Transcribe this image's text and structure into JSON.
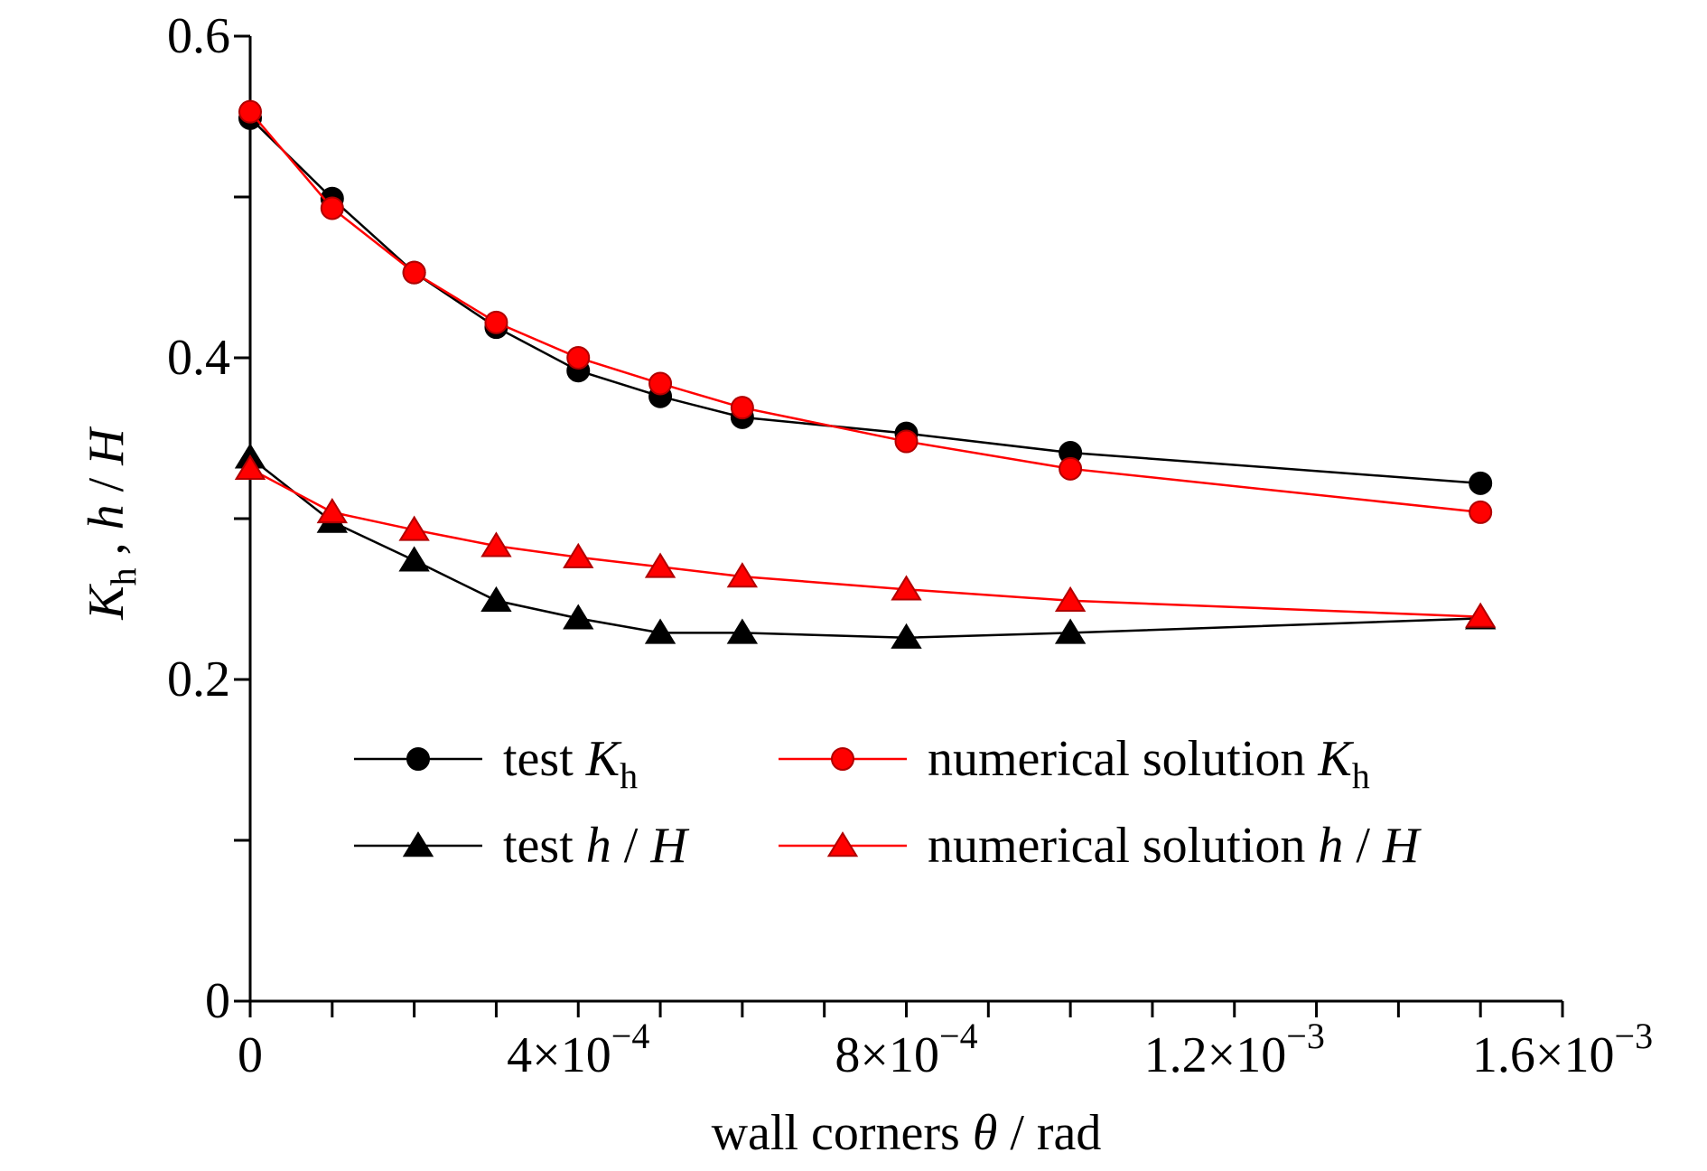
{
  "chart_data": {
    "type": "line",
    "xlabel": {
      "prefix": "wall corners ",
      "symbol": "θ",
      "suffix": " / rad"
    },
    "ylabel": {
      "parts": [
        {
          "text": "K",
          "italic": true
        },
        {
          "text": "h",
          "sub": true
        },
        {
          "text": " , ",
          "italic": false
        },
        {
          "text": "h",
          "italic": true
        },
        {
          "text": " / ",
          "italic": false
        },
        {
          "text": "H",
          "italic": true
        }
      ]
    },
    "xlim": [
      0,
      0.0016
    ],
    "ylim": [
      0,
      0.6
    ],
    "x_ticks": [
      {
        "value": 0,
        "mantissa": "0",
        "exponent": ""
      },
      {
        "value": 0.0004,
        "mantissa": "4×10",
        "exponent": "−4"
      },
      {
        "value": 0.0008,
        "mantissa": "8×10",
        "exponent": "−4"
      },
      {
        "value": 0.0012,
        "mantissa": "1.2×10",
        "exponent": "−3"
      },
      {
        "value": 0.0016,
        "mantissa": "1.6×10",
        "exponent": "−3"
      }
    ],
    "y_ticks": [
      {
        "value": 0,
        "label": "0"
      },
      {
        "value": 0.2,
        "label": "0.2"
      },
      {
        "value": 0.4,
        "label": "0.4"
      },
      {
        "value": 0.6,
        "label": "0.6"
      }
    ],
    "x": [
      0,
      0.0001,
      0.0002,
      0.0003,
      0.0004,
      0.0005,
      0.0006,
      0.0008,
      0.001,
      0.0015
    ],
    "series": [
      {
        "key": "test_kh",
        "label": "test",
        "var": "Kh",
        "color": "#000000",
        "marker": "circle",
        "values": [
          0.549,
          0.499,
          0.453,
          0.419,
          0.392,
          0.376,
          0.363,
          0.353,
          0.341,
          0.322
        ]
      },
      {
        "key": "num_kh",
        "label": "numerical solution",
        "var": "Kh",
        "color": "#ff0000",
        "marker": "circle",
        "values": [
          0.553,
          0.493,
          0.453,
          0.422,
          0.4,
          0.384,
          0.369,
          0.348,
          0.331,
          0.304
        ]
      },
      {
        "key": "test_hH",
        "label": "test",
        "var": "h/H",
        "color": "#000000",
        "marker": "triangle",
        "values": [
          0.338,
          0.298,
          0.274,
          0.249,
          0.238,
          0.229,
          0.229,
          0.226,
          0.229,
          0.238
        ]
      },
      {
        "key": "num_hH",
        "label": "numerical solution",
        "var": "h/H",
        "color": "#ff0000",
        "marker": "triangle",
        "values": [
          0.331,
          0.304,
          0.293,
          0.283,
          0.276,
          0.27,
          0.264,
          0.256,
          0.249,
          0.239
        ]
      }
    ],
    "legend": {
      "placement": "lower-center",
      "columns": 2
    }
  }
}
